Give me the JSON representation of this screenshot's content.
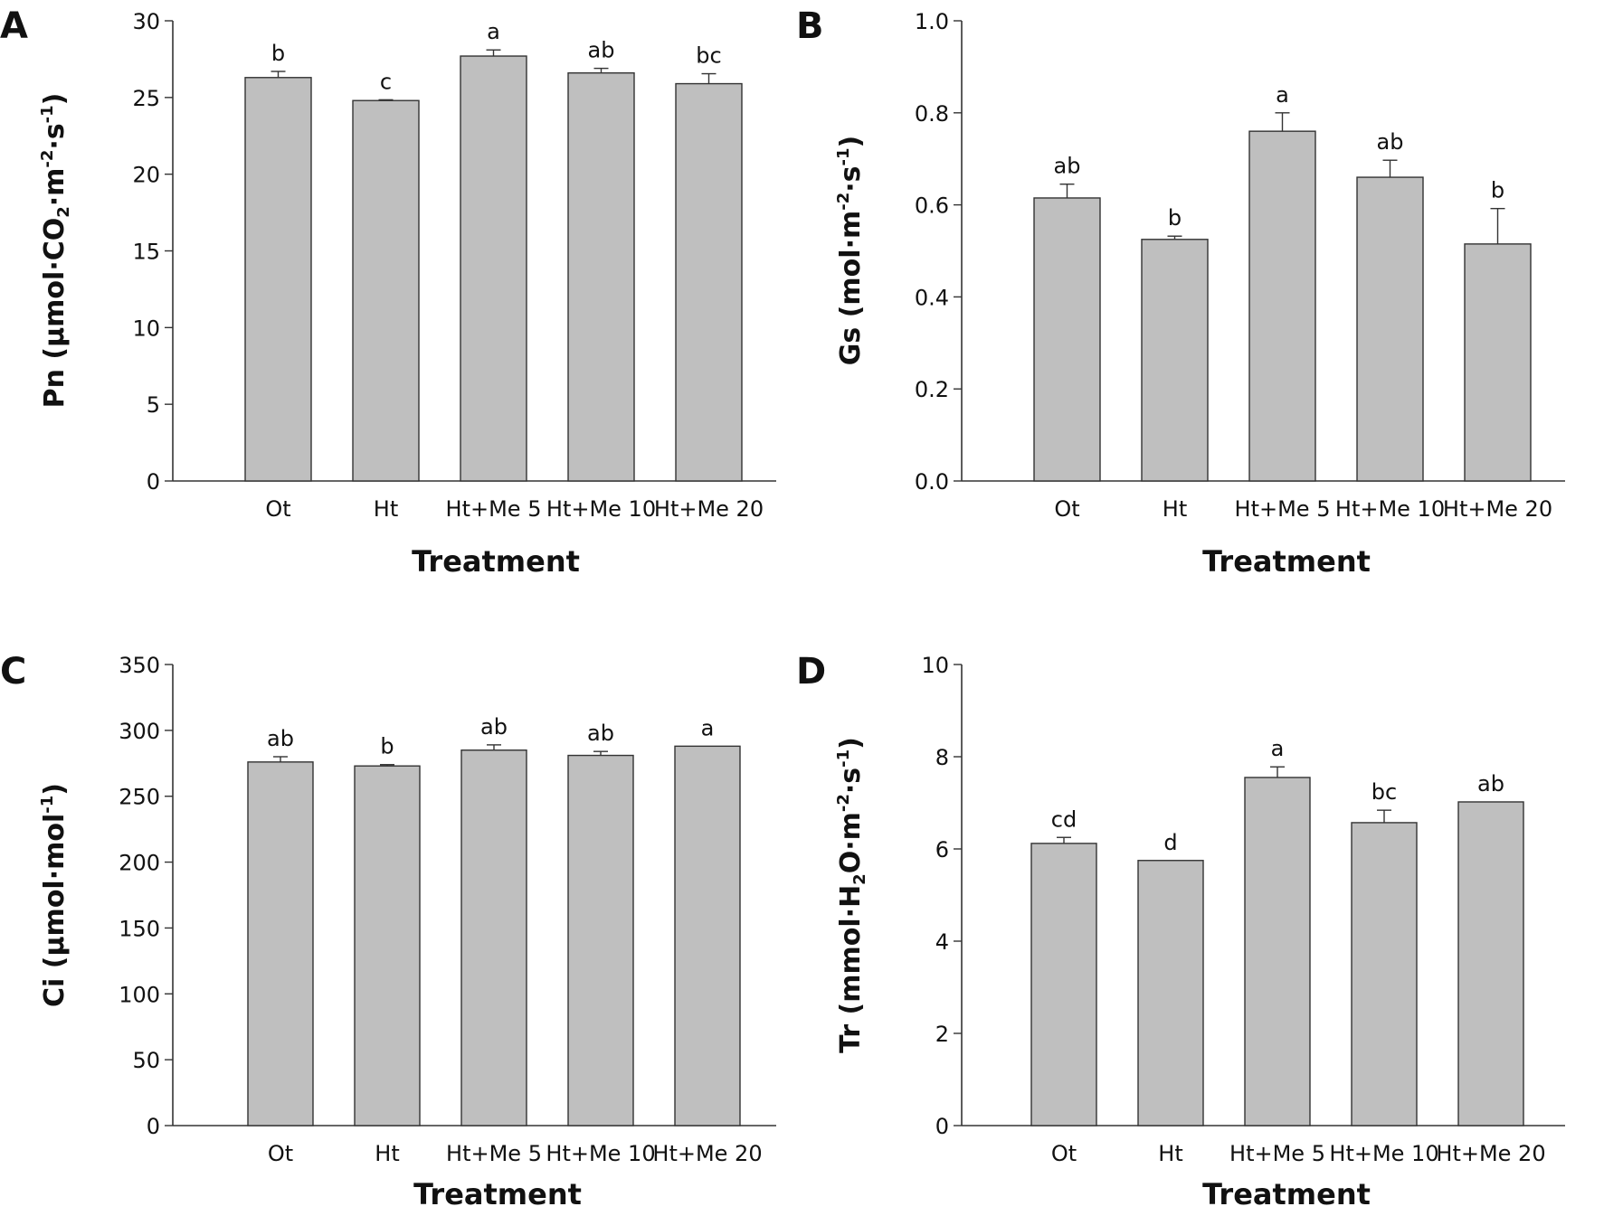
{
  "chart_data": [
    {
      "panel": "A",
      "type": "bar",
      "title": "",
      "xlabel": "Treatment",
      "ylabel_parts": {
        "pre": "Pn (μmol·CO",
        "sub": "2",
        "mid": "·m",
        "sup1": "-2",
        "mid2": "·s",
        "sup2": "-1",
        "post": ")"
      },
      "categories": [
        "Ot",
        "Ht",
        "Ht+Me 5",
        "Ht+Me 10",
        "Ht+Me 20"
      ],
      "values": [
        26.3,
        24.8,
        27.7,
        26.6,
        25.9
      ],
      "errors": [
        0.4,
        0.05,
        0.4,
        0.3,
        0.65
      ],
      "significance": [
        "b",
        "c",
        "a",
        "ab",
        "bc"
      ],
      "ylim": [
        0,
        30
      ],
      "yticks": [
        "0",
        "5",
        "10",
        "15",
        "20",
        "25",
        "30"
      ],
      "ytick_values": [
        0,
        5,
        10,
        15,
        20,
        25,
        30
      ]
    },
    {
      "panel": "B",
      "type": "bar",
      "title": "",
      "xlabel": "Treatment",
      "ylabel_parts": {
        "pre": "Gs (mol·m",
        "sub": "",
        "mid": "",
        "sup1": "-2",
        "mid2": "·s",
        "sup2": "-1",
        "post": ")"
      },
      "categories": [
        "Ot",
        "Ht",
        "Ht+Me 5",
        "Ht+Me 10",
        "Ht+Me 20"
      ],
      "values": [
        0.615,
        0.525,
        0.76,
        0.66,
        0.515
      ],
      "errors": [
        0.03,
        0.007,
        0.04,
        0.037,
        0.077
      ],
      "significance": [
        "ab",
        "b",
        "a",
        "ab",
        "b"
      ],
      "ylim": [
        0,
        1.0
      ],
      "yticks": [
        "0.0",
        "0.2",
        "0.4",
        "0.6",
        "0.8",
        "1.0"
      ],
      "ytick_values": [
        0,
        0.2,
        0.4,
        0.6,
        0.8,
        1.0
      ]
    },
    {
      "panel": "C",
      "type": "bar",
      "title": "",
      "xlabel": "Treatment",
      "ylabel_parts": {
        "pre": "Ci (μmol·mol",
        "sub": "",
        "mid": "",
        "sup1": "-1",
        "mid2": "",
        "sup2": "",
        "post": ")"
      },
      "categories": [
        "Ot",
        "Ht",
        "Ht+Me 5",
        "Ht+Me 10",
        "Ht+Me 20"
      ],
      "values": [
        276,
        273,
        285,
        281,
        288
      ],
      "errors": [
        4,
        1,
        4,
        3,
        0
      ],
      "significance": [
        "ab",
        "b",
        "ab",
        "ab",
        "a"
      ],
      "ylim": [
        0,
        350
      ],
      "yticks": [
        "0",
        "50",
        "100",
        "150",
        "200",
        "250",
        "300",
        "350"
      ],
      "ytick_values": [
        0,
        50,
        100,
        150,
        200,
        250,
        300,
        350
      ]
    },
    {
      "panel": "D",
      "type": "bar",
      "title": "",
      "xlabel": "Treatment",
      "ylabel_parts": {
        "pre": "Tr (mmol·H",
        "sub": "2",
        "mid": "O·m",
        "sup1": "-2",
        "mid2": "·s",
        "sup2": "-1",
        "post": ")"
      },
      "categories": [
        "Ot",
        "Ht",
        "Ht+Me 5",
        "Ht+Me 10",
        "Ht+Me 20"
      ],
      "values": [
        6.12,
        5.75,
        7.55,
        6.57,
        7.02
      ],
      "errors": [
        0.13,
        0.0,
        0.23,
        0.27,
        0.0
      ],
      "significance": [
        "cd",
        "d",
        "a",
        "bc",
        "ab"
      ],
      "ylim": [
        0,
        10
      ],
      "yticks": [
        "0",
        "2",
        "4",
        "6",
        "8",
        "10"
      ],
      "ytick_values": [
        0,
        2,
        4,
        6,
        8,
        10
      ]
    }
  ],
  "colors": {
    "bar_fill": "#bfbfbf",
    "bar_stroke": "#333333",
    "axis": "#333333"
  }
}
